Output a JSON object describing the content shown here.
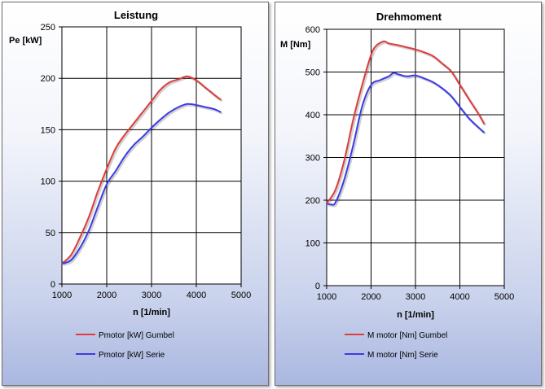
{
  "chart_data": [
    {
      "type": "line",
      "title": "Leistung",
      "xlabel": "n [1/min]",
      "ylabel": "Pe [kW]",
      "xlim": [
        1000,
        5000
      ],
      "ylim": [
        0,
        250
      ],
      "xticks": [
        1000,
        2000,
        3000,
        4000,
        5000
      ],
      "yticks": [
        0,
        50,
        100,
        150,
        200,
        250
      ],
      "legend_position": "bottom",
      "series": [
        {
          "name": "Pmotor [kW] Gumbel",
          "color": "#e03c3c",
          "x": [
            1000,
            1200,
            1400,
            1600,
            1800,
            2000,
            2200,
            2400,
            2600,
            2800,
            3000,
            3200,
            3400,
            3600,
            3800,
            4000,
            4200,
            4400,
            4550
          ],
          "y": [
            20,
            28,
            45,
            65,
            90,
            112,
            132,
            145,
            156,
            167,
            178,
            189,
            196,
            199,
            202,
            198,
            191,
            184,
            179
          ]
        },
        {
          "name": "Pmotor [kW] Serie",
          "color": "#3c3ce6",
          "x": [
            1000,
            1200,
            1400,
            1600,
            1800,
            2000,
            2200,
            2400,
            2600,
            2800,
            3000,
            3200,
            3400,
            3600,
            3800,
            4000,
            4200,
            4400,
            4550
          ],
          "y": [
            20,
            23,
            35,
            52,
            75,
            97,
            110,
            124,
            135,
            143,
            152,
            160,
            167,
            172,
            175,
            174,
            172,
            170,
            167
          ]
        }
      ]
    },
    {
      "type": "line",
      "title": "Drehmoment",
      "xlabel": "n [1/min]",
      "ylabel": "M [Nm]",
      "xlim": [
        1000,
        5000
      ],
      "ylim": [
        0,
        600
      ],
      "xticks": [
        1000,
        2000,
        3000,
        4000,
        5000
      ],
      "yticks": [
        0,
        100,
        200,
        300,
        400,
        500,
        600
      ],
      "legend_position": "bottom",
      "series": [
        {
          "name": "M motor [Nm] Gumbel",
          "color": "#e03c3c",
          "x": [
            1000,
            1200,
            1400,
            1600,
            1800,
            2000,
            2100,
            2200,
            2300,
            2400,
            2600,
            2800,
            3000,
            3200,
            3400,
            3600,
            3800,
            4000,
            4200,
            4400,
            4550
          ],
          "y": [
            193,
            225,
            295,
            390,
            470,
            540,
            560,
            568,
            572,
            567,
            563,
            558,
            553,
            546,
            537,
            520,
            502,
            470,
            437,
            405,
            378
          ]
        },
        {
          "name": "M motor [Nm] Serie",
          "color": "#3c3ce6",
          "x": [
            1000,
            1100,
            1200,
            1400,
            1600,
            1800,
            2000,
            2200,
            2400,
            2500,
            2600,
            2800,
            3000,
            3200,
            3400,
            3600,
            3800,
            4000,
            4200,
            4400,
            4550
          ],
          "y": [
            192,
            190,
            195,
            250,
            330,
            420,
            470,
            481,
            490,
            498,
            495,
            490,
            492,
            485,
            476,
            462,
            444,
            418,
            392,
            372,
            358
          ]
        }
      ]
    }
  ]
}
